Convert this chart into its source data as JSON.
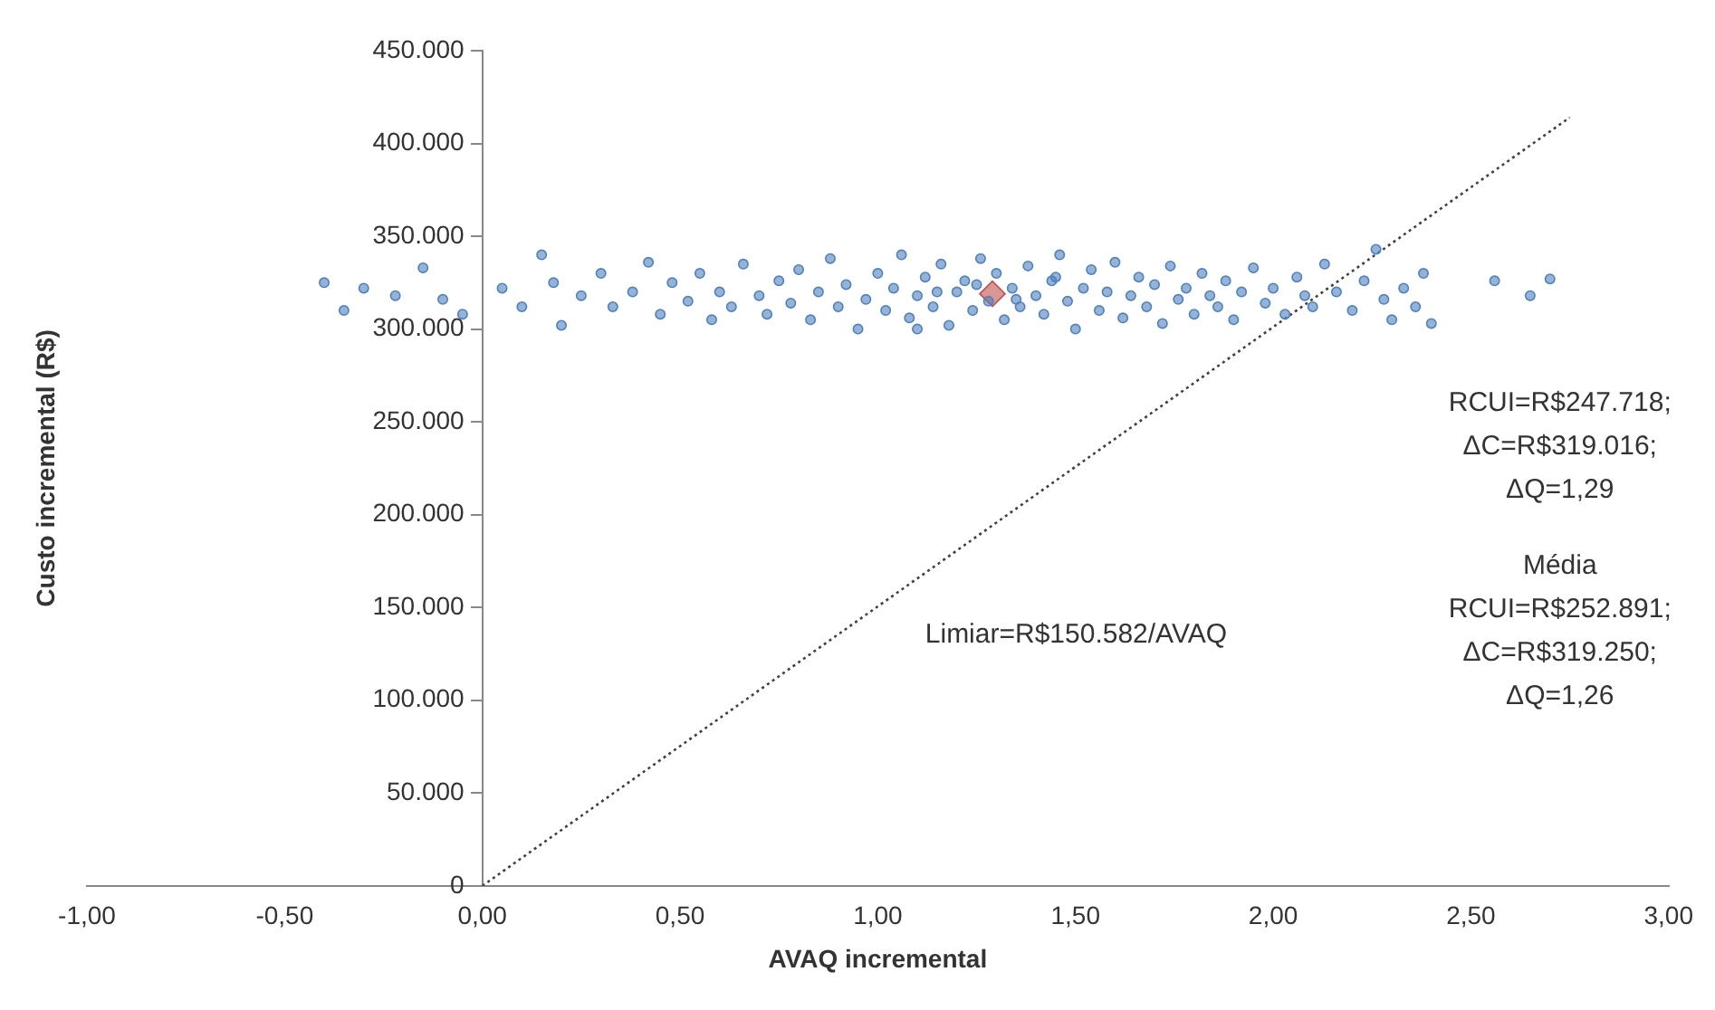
{
  "chart_data": {
    "type": "scatter",
    "xlabel": "AVAQ incremental",
    "ylabel": "Custo incremental (R$)",
    "xlim": [
      -1,
      3
    ],
    "xticks": [
      {
        "value": -1,
        "label": "-1,00"
      },
      {
        "value": -0.5,
        "label": "-0,50"
      },
      {
        "value": 0,
        "label": "0,00"
      },
      {
        "value": 0.5,
        "label": "0,50"
      },
      {
        "value": 1,
        "label": "1,00"
      },
      {
        "value": 1.5,
        "label": "1,50"
      },
      {
        "value": 2,
        "label": "2,00"
      },
      {
        "value": 2.5,
        "label": "2,50"
      },
      {
        "value": 3,
        "label": "3,00"
      }
    ],
    "ylim": [
      0,
      450000
    ],
    "yticks": [
      {
        "value": 0,
        "label": "0"
      },
      {
        "value": 50000,
        "label": "50.000"
      },
      {
        "value": 100000,
        "label": "100.000"
      },
      {
        "value": 150000,
        "label": "150.000"
      },
      {
        "value": 200000,
        "label": "200.000"
      },
      {
        "value": 250000,
        "label": "250.000"
      },
      {
        "value": 300000,
        "label": "300.000"
      },
      {
        "value": 350000,
        "label": "350.000"
      },
      {
        "value": 400000,
        "label": "400.000"
      },
      {
        "value": 450000,
        "label": "450.000"
      }
    ],
    "grid": false,
    "legend": false,
    "series": [
      {
        "type": "scatter",
        "marker": "circle",
        "color": "#4f81bd",
        "x": [
          -0.4,
          -0.35,
          -0.3,
          -0.22,
          -0.15,
          -0.1,
          -0.05,
          0.05,
          0.1,
          0.15,
          0.18,
          0.2,
          0.25,
          0.3,
          0.33,
          0.38,
          0.42,
          0.45,
          0.48,
          0.52,
          0.55,
          0.58,
          0.6,
          0.63,
          0.66,
          0.7,
          0.72,
          0.75,
          0.78,
          0.8,
          0.83,
          0.85,
          0.88,
          0.9,
          0.92,
          0.95,
          0.97,
          1.0,
          1.02,
          1.04,
          1.06,
          1.08,
          1.1,
          1.12,
          1.14,
          1.16,
          1.18,
          1.2,
          1.22,
          1.24,
          1.26,
          1.28,
          1.3,
          1.32,
          1.34,
          1.36,
          1.38,
          1.4,
          1.42,
          1.44,
          1.46,
          1.48,
          1.5,
          1.52,
          1.54,
          1.56,
          1.58,
          1.6,
          1.62,
          1.64,
          1.66,
          1.68,
          1.7,
          1.72,
          1.74,
          1.76,
          1.78,
          1.8,
          1.82,
          1.84,
          1.86,
          1.88,
          1.9,
          1.92,
          1.95,
          1.98,
          2.0,
          2.03,
          2.06,
          2.08,
          2.1,
          2.13,
          2.16,
          2.2,
          2.23,
          2.26,
          2.28,
          2.3,
          2.33,
          2.36,
          2.38,
          2.4,
          2.56,
          2.65,
          2.7,
          1.1,
          1.25,
          1.35,
          1.45,
          1.15
        ],
        "values": [
          325000,
          310000,
          322000,
          318000,
          333000,
          316000,
          308000,
          322000,
          312000,
          340000,
          325000,
          302000,
          318000,
          330000,
          312000,
          320000,
          336000,
          308000,
          325000,
          315000,
          330000,
          305000,
          320000,
          312000,
          335000,
          318000,
          308000,
          326000,
          314000,
          332000,
          305000,
          320000,
          338000,
          312000,
          324000,
          300000,
          316000,
          330000,
          310000,
          322000,
          340000,
          306000,
          318000,
          328000,
          312000,
          335000,
          302000,
          320000,
          326000,
          310000,
          338000,
          315000,
          330000,
          305000,
          322000,
          312000,
          334000,
          318000,
          308000,
          326000,
          340000,
          315000,
          300000,
          322000,
          332000,
          310000,
          320000,
          336000,
          306000,
          318000,
          328000,
          312000,
          324000,
          303000,
          334000,
          316000,
          322000,
          308000,
          330000,
          318000,
          312000,
          326000,
          305000,
          320000,
          333000,
          314000,
          322000,
          308000,
          328000,
          318000,
          312000,
          335000,
          320000,
          310000,
          326000,
          343000,
          316000,
          305000,
          322000,
          312000,
          330000,
          303000,
          326000,
          318000,
          327000,
          300000,
          324000,
          316000,
          328000,
          320000
        ]
      },
      {
        "type": "scatter",
        "marker": "diamond",
        "color": "#c0504d",
        "x": [
          1.29
        ],
        "values": [
          319000
        ]
      },
      {
        "type": "line",
        "marker": "none",
        "line_style": "dotted",
        "color": "#404040",
        "x": [
          0,
          2.75
        ],
        "values": [
          0,
          414000
        ]
      }
    ],
    "annotations": [
      "Limiar=R$150.582/AVAQ",
      "RCUI=R$247.718;",
      "ΔC=R$319.016;",
      "ΔQ=1,29",
      "Média",
      "RCUI=R$252.891;",
      "ΔC=R$319.250;",
      "ΔQ=1,26"
    ]
  }
}
